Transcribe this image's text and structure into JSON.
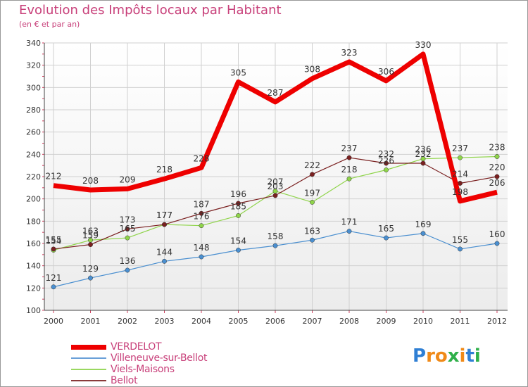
{
  "chart_data": {
    "type": "line",
    "title": "Evolution des Impôts locaux par Habitant",
    "subtitle": "(en € et par an)",
    "categories": [
      "2000",
      "2001",
      "2002",
      "2003",
      "2004",
      "2005",
      "2006",
      "2007",
      "2008",
      "2009",
      "2010",
      "2011",
      "2012"
    ],
    "ylim": [
      100,
      340
    ],
    "yticks": [
      100,
      120,
      140,
      160,
      180,
      200,
      220,
      240,
      260,
      280,
      300,
      320,
      340
    ],
    "series": [
      {
        "name": "Villeneuve-sur-Bellot",
        "color": "#4a8fd0",
        "values": [
          121,
          129,
          136,
          144,
          148,
          154,
          158,
          163,
          171,
          165,
          169,
          155,
          160
        ],
        "labels": [
          "121",
          "129",
          "136",
          "144",
          "148",
          "154",
          "158",
          "163",
          "171",
          "165",
          "169",
          "155",
          "160"
        ]
      },
      {
        "name": "Viels-Maisons",
        "color": "#8fd44a",
        "values": [
          154,
          163,
          165,
          177,
          176,
          185,
          207,
          197,
          218,
          226,
          236,
          237,
          238
        ],
        "labels": [
          "154",
          "163",
          "165",
          "177",
          "176",
          "185",
          "207",
          "197",
          "218",
          "226",
          "236",
          "237",
          "238"
        ]
      },
      {
        "name": "Bellot",
        "color": "#7a2020",
        "values": [
          155,
          159,
          173,
          177,
          187,
          196,
          203,
          222,
          237,
          232,
          232,
          214,
          220
        ],
        "labels": [
          "155",
          "159",
          "173",
          "177",
          "187",
          "196",
          "203",
          "222",
          "237",
          "232",
          "232",
          "214",
          "220"
        ]
      },
      {
        "name": "VERDELOT",
        "color": "#ee0000",
        "values": [
          212,
          208,
          209,
          218,
          228,
          305,
          287,
          308,
          323,
          306,
          330,
          198,
          206
        ],
        "labels": [
          "212",
          "208",
          "209",
          "218",
          "228",
          "305",
          "287",
          "308",
          "323",
          "306",
          "330",
          "198",
          "206"
        ]
      }
    ]
  },
  "legend": [
    {
      "label": "VERDELOT",
      "color": "#ee0000",
      "thick": true
    },
    {
      "label": "Villeneuve-sur-Bellot",
      "color": "#6aa0d8",
      "thick": false
    },
    {
      "label": "Viels-Maisons",
      "color": "#9ad860",
      "thick": false
    },
    {
      "label": "Bellot",
      "color": "#8a3a3a",
      "thick": false
    }
  ],
  "brand": {
    "letters": [
      "P",
      "r",
      "o",
      "x",
      "i",
      "t",
      "i"
    ],
    "colors": [
      "#2f7fd4",
      "#f08a18",
      "#f08a18",
      "#2fb04a",
      "#f08a18",
      "#2f7fd4",
      "#2fb04a"
    ]
  }
}
